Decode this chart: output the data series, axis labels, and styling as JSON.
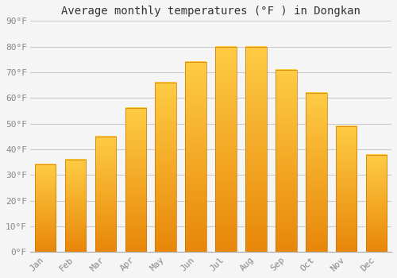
{
  "title": "Average monthly temperatures (°F ) in Dongkan",
  "months": [
    "Jan",
    "Feb",
    "Mar",
    "Apr",
    "May",
    "Jun",
    "Jul",
    "Aug",
    "Sep",
    "Oct",
    "Nov",
    "Dec"
  ],
  "values": [
    34,
    36,
    45,
    56,
    66,
    74,
    80,
    80,
    71,
    62,
    49,
    38
  ],
  "ylim": [
    0,
    90
  ],
  "yticks": [
    0,
    10,
    20,
    30,
    40,
    50,
    60,
    70,
    80,
    90
  ],
  "ytick_labels": [
    "0°F",
    "10°F",
    "20°F",
    "30°F",
    "40°F",
    "50°F",
    "60°F",
    "70°F",
    "80°F",
    "90°F"
  ],
  "title_fontsize": 10,
  "tick_fontsize": 8,
  "background_color": "#f5f5f5",
  "plot_bg_color": "#f5f5f5",
  "grid_color": "#cccccc",
  "bar_color_bottom": "#E8870A",
  "bar_color_top": "#FFCC44",
  "bar_border_color": "#CC7700",
  "bar_width": 0.7
}
